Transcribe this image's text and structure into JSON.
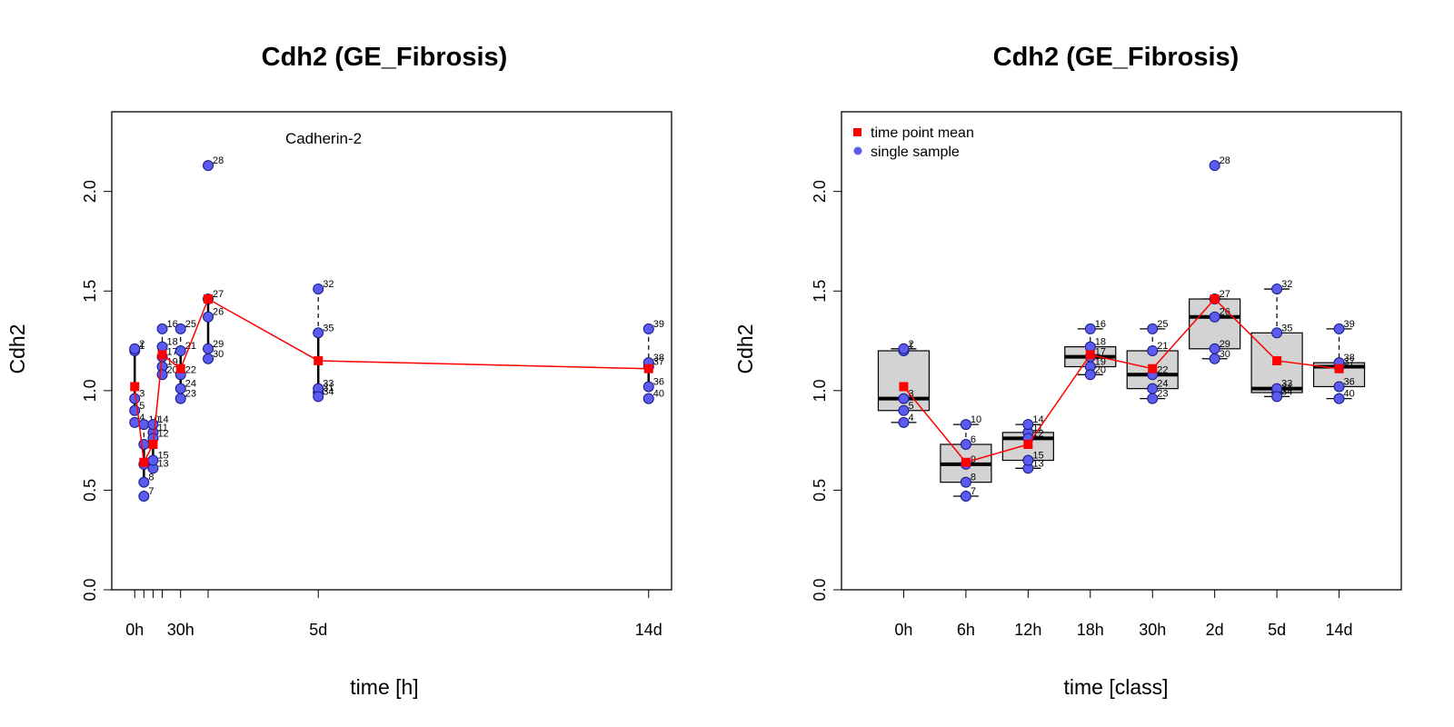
{
  "chart_data": [
    {
      "type": "scatter",
      "title": "Cdh2 (GE_Fibrosis)",
      "annotation": "Cadherin-2",
      "xlabel": "time [h]",
      "ylabel": "Cdh2",
      "ylim": [
        0.0,
        2.4
      ],
      "y_ticks": [
        "0.0",
        "0.5",
        "1.0",
        "1.5",
        "2.0"
      ],
      "x_tick_positions": [
        0,
        6,
        12,
        18,
        30,
        48,
        120,
        336
      ],
      "x_tick_labels": [
        {
          "x": 0,
          "label": "0h"
        },
        {
          "x": 30,
          "label": "30h"
        },
        {
          "x": 120,
          "label": "5d"
        },
        {
          "x": 336,
          "label": "14d"
        }
      ],
      "xlim": [
        -15,
        351
      ],
      "series": [
        {
          "name": "single sample",
          "color": "#5b5bf0",
          "marker": "circle"
        },
        {
          "name": "time point mean",
          "color": "#ff0000",
          "marker": "square",
          "line": true
        }
      ]
    },
    {
      "type": "box",
      "title": "Cdh2 (GE_Fibrosis)",
      "xlabel": "time [class]",
      "ylabel": "Cdh2",
      "ylim": [
        0.0,
        2.4
      ],
      "y_ticks": [
        "0.0",
        "0.5",
        "1.0",
        "1.5",
        "2.0"
      ],
      "categories": [
        "0h",
        "6h",
        "12h",
        "18h",
        "30h",
        "2d",
        "5d",
        "14d"
      ],
      "legend": {
        "position": "top-left",
        "entries": [
          {
            "label": "time point mean",
            "color": "#ff0000",
            "marker": "square"
          },
          {
            "label": "single sample",
            "color": "#5b5bf0",
            "marker": "circle"
          }
        ]
      },
      "boxes": [
        {
          "category": "0h",
          "min": 0.84,
          "q1": 0.9,
          "median": 0.96,
          "q3": 1.2,
          "max": 1.21
        },
        {
          "category": "6h",
          "min": 0.47,
          "q1": 0.54,
          "median": 0.63,
          "q3": 0.73,
          "max": 0.83
        },
        {
          "category": "12h",
          "min": 0.61,
          "q1": 0.65,
          "median": 0.76,
          "q3": 0.79,
          "max": 0.83
        },
        {
          "category": "18h",
          "min": 1.08,
          "q1": 1.12,
          "median": 1.17,
          "q3": 1.22,
          "max": 1.31
        },
        {
          "category": "30h",
          "min": 0.96,
          "q1": 1.01,
          "median": 1.08,
          "q3": 1.2,
          "max": 1.31
        },
        {
          "category": "2d",
          "min": 1.16,
          "q1": 1.21,
          "median": 1.37,
          "q3": 1.46,
          "max": 1.46
        },
        {
          "category": "5d",
          "min": 0.97,
          "q1": 0.99,
          "median": 1.01,
          "q3": 1.29,
          "max": 1.51
        },
        {
          "category": "14d",
          "min": 0.96,
          "q1": 1.02,
          "median": 1.12,
          "q3": 1.14,
          "max": 1.31
        }
      ]
    }
  ],
  "samples": [
    {
      "id": "1",
      "class": 0,
      "t": 0,
      "y": 1.2
    },
    {
      "id": "2",
      "class": 0,
      "t": 0,
      "y": 1.21
    },
    {
      "id": "3",
      "class": 0,
      "t": 0,
      "y": 0.96
    },
    {
      "id": "4",
      "class": 0,
      "t": 0,
      "y": 0.84
    },
    {
      "id": "5",
      "class": 0,
      "t": 0,
      "y": 0.9
    },
    {
      "id": "6",
      "class": 1,
      "t": 6,
      "y": 0.73
    },
    {
      "id": "7",
      "class": 1,
      "t": 6,
      "y": 0.47
    },
    {
      "id": "8",
      "class": 1,
      "t": 6,
      "y": 0.54
    },
    {
      "id": "9",
      "class": 1,
      "t": 6,
      "y": 0.63
    },
    {
      "id": "10",
      "class": 1,
      "t": 6,
      "y": 0.83
    },
    {
      "id": "11",
      "class": 2,
      "t": 12,
      "y": 0.79
    },
    {
      "id": "12",
      "class": 2,
      "t": 12,
      "y": 0.76
    },
    {
      "id": "13",
      "class": 2,
      "t": 12,
      "y": 0.61
    },
    {
      "id": "14",
      "class": 2,
      "t": 12,
      "y": 0.83
    },
    {
      "id": "15",
      "class": 2,
      "t": 12,
      "y": 0.65
    },
    {
      "id": "16",
      "class": 3,
      "t": 18,
      "y": 1.31
    },
    {
      "id": "17",
      "class": 3,
      "t": 18,
      "y": 1.17
    },
    {
      "id": "18",
      "class": 3,
      "t": 18,
      "y": 1.22
    },
    {
      "id": "19",
      "class": 3,
      "t": 18,
      "y": 1.12
    },
    {
      "id": "20",
      "class": 3,
      "t": 18,
      "y": 1.08
    },
    {
      "id": "21",
      "class": 4,
      "t": 30,
      "y": 1.2
    },
    {
      "id": "22",
      "class": 4,
      "t": 30,
      "y": 1.08
    },
    {
      "id": "23",
      "class": 4,
      "t": 30,
      "y": 0.96
    },
    {
      "id": "24",
      "class": 4,
      "t": 30,
      "y": 1.01
    },
    {
      "id": "25",
      "class": 4,
      "t": 30,
      "y": 1.31
    },
    {
      "id": "26",
      "class": 5,
      "t": 48,
      "y": 1.37
    },
    {
      "id": "27",
      "class": 5,
      "t": 48,
      "y": 1.46
    },
    {
      "id": "28",
      "class": 5,
      "t": 48,
      "y": 2.13
    },
    {
      "id": "29",
      "class": 5,
      "t": 48,
      "y": 1.21
    },
    {
      "id": "30",
      "class": 5,
      "t": 48,
      "y": 1.16
    },
    {
      "id": "31",
      "class": 6,
      "t": 120,
      "y": 0.99
    },
    {
      "id": "32",
      "class": 6,
      "t": 120,
      "y": 1.51
    },
    {
      "id": "33",
      "class": 6,
      "t": 120,
      "y": 1.01
    },
    {
      "id": "34",
      "class": 6,
      "t": 120,
      "y": 0.97
    },
    {
      "id": "35",
      "class": 6,
      "t": 120,
      "y": 1.29
    },
    {
      "id": "36",
      "class": 7,
      "t": 336,
      "y": 1.02
    },
    {
      "id": "37",
      "class": 7,
      "t": 336,
      "y": 1.12
    },
    {
      "id": "38",
      "class": 7,
      "t": 336,
      "y": 1.14
    },
    {
      "id": "39",
      "class": 7,
      "t": 336,
      "y": 1.31
    },
    {
      "id": "40",
      "class": 7,
      "t": 336,
      "y": 0.96
    }
  ],
  "means": [
    {
      "t": 0,
      "class": 0,
      "y": 1.02
    },
    {
      "t": 6,
      "class": 1,
      "y": 0.64
    },
    {
      "t": 12,
      "class": 2,
      "y": 0.73
    },
    {
      "t": 18,
      "class": 3,
      "y": 1.18
    },
    {
      "t": 30,
      "class": 4,
      "y": 1.11
    },
    {
      "t": 48,
      "class": 5,
      "y": 1.46
    },
    {
      "t": 120,
      "class": 6,
      "y": 1.15
    },
    {
      "t": 336,
      "class": 7,
      "y": 1.11
    }
  ]
}
